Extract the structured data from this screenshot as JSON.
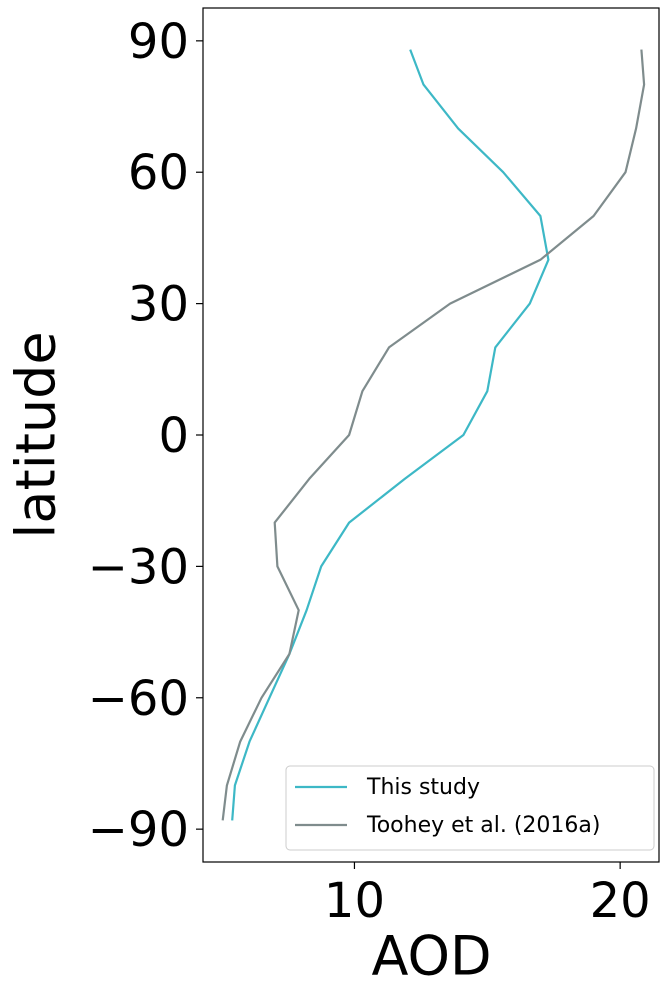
{
  "chart_data": {
    "type": "line",
    "xlabel": "AOD",
    "ylabel": "latitude",
    "y": [
      -88,
      -80,
      -70,
      -60,
      -50,
      -40,
      -30,
      -20,
      -10,
      0,
      10,
      20,
      30,
      40,
      50,
      60,
      70,
      80,
      88
    ],
    "series": [
      {
        "name": "This study",
        "color": "#3db8c6",
        "values": [
          5.4,
          5.5,
          6.05,
          6.8,
          7.55,
          8.2,
          8.75,
          9.8,
          11.9,
          14.1,
          15.0,
          15.3,
          16.6,
          17.3,
          17.0,
          15.6,
          13.9,
          12.6,
          12.1
        ]
      },
      {
        "name": "Toohey et al. (2016a)",
        "color": "#7f8c8d",
        "values": [
          5.04,
          5.2,
          5.7,
          6.5,
          7.55,
          7.9,
          7.1,
          7.0,
          8.3,
          9.8,
          10.3,
          11.3,
          13.6,
          17.0,
          19.0,
          20.2,
          20.6,
          20.9,
          20.8
        ]
      }
    ],
    "xlim": [
      4.3,
      21.5
    ],
    "xticks": [
      10,
      20
    ],
    "ylim": [
      -97.5,
      97.5
    ],
    "yticks": [
      {
        "value": -90,
        "label": "−90"
      },
      {
        "value": -60,
        "label": "−60"
      },
      {
        "value": -30,
        "label": "−30"
      },
      0,
      30,
      60,
      90
    ],
    "legend": "lower right"
  }
}
